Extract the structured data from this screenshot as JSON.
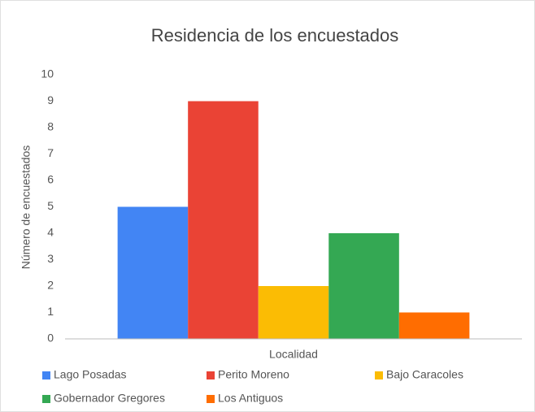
{
  "chart_data": {
    "type": "bar",
    "title": "Residencia de los encuestados",
    "x_label": "Localidad",
    "y_label": "Número de encuestados",
    "categories": [
      null
    ],
    "series": [
      {
        "name": "Lago Posadas",
        "color": "#4285f4",
        "values": [
          5
        ]
      },
      {
        "name": "Perito Moreno",
        "color": "#ea4335",
        "values": [
          9
        ]
      },
      {
        "name": "Bajo Caracoles",
        "color": "#fbbc04",
        "values": [
          2
        ]
      },
      {
        "name": "Gobernador Gregores",
        "color": "#34a853",
        "values": [
          4
        ]
      },
      {
        "name": "Los Antiguos",
        "color": "#ff6d01",
        "values": [
          1
        ]
      }
    ],
    "ylim": [
      0,
      10
    ],
    "yticks": [
      0,
      1,
      2,
      3,
      4,
      5,
      6,
      7,
      8,
      9,
      10
    ],
    "grid": false,
    "legend": "bottom"
  }
}
